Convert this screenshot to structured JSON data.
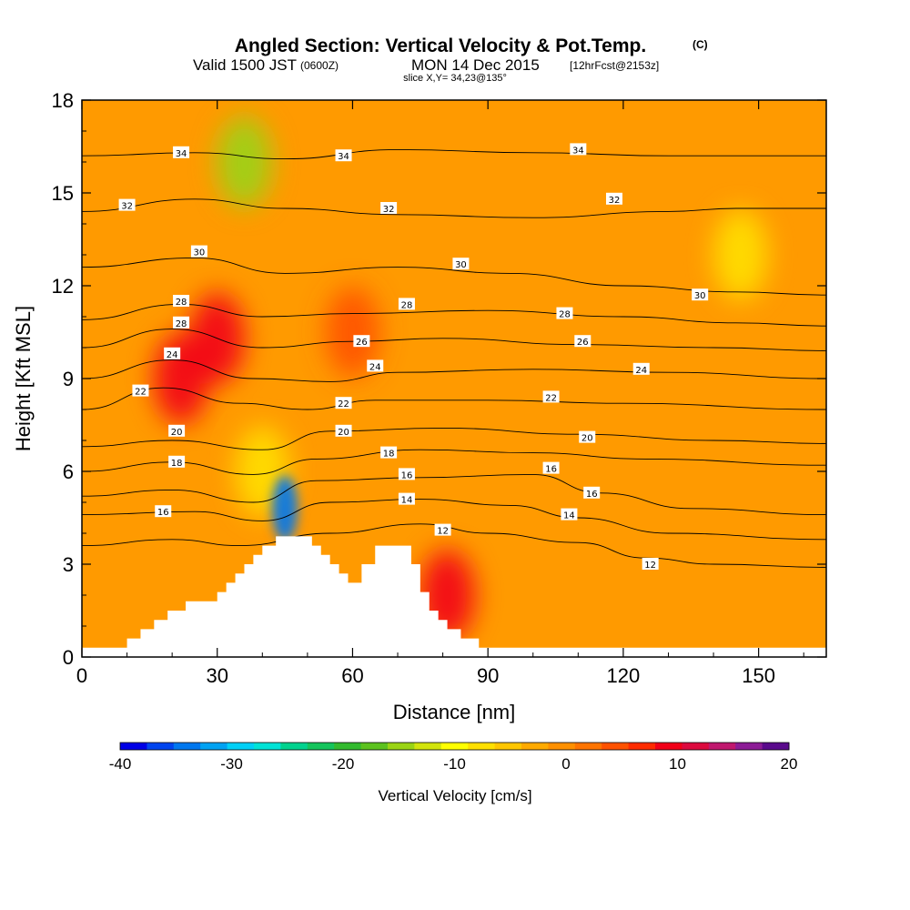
{
  "title": {
    "main": "Angled Section: Vertical Velocity & Pot.Temp.",
    "units_mark": "(C)",
    "valid_prefix": "Valid 1500 JST",
    "utc": "(0600Z)",
    "valid_date": "MON 14 Dec 2015",
    "forecast": "[12hrFcst@2153z]",
    "slice": "slice X,Y= 34,23@135°"
  },
  "chart_data": {
    "type": "contour",
    "xlabel": "Distance [nm]",
    "ylabel": "Height [Kft MSL]",
    "xlim": [
      0,
      165
    ],
    "ylim": [
      0,
      18
    ],
    "xticks": [
      "0",
      "30",
      "60",
      "90",
      "120",
      "150"
    ],
    "xtick_values": [
      0,
      30,
      60,
      90,
      120,
      150
    ],
    "yticks": [
      "0",
      "3",
      "6",
      "9",
      "12",
      "15",
      "18"
    ],
    "ytick_values": [
      0,
      3,
      6,
      9,
      12,
      15,
      18
    ],
    "colorbar": {
      "label": "Vertical Velocity [cm/s]",
      "range": [
        -40,
        20
      ],
      "ticks": [
        "-40",
        "-30",
        "-20",
        "-10",
        "0",
        "10",
        "20"
      ],
      "tick_values": [
        -40,
        -30,
        -20,
        -10,
        0,
        10,
        20
      ],
      "colors": [
        "#0000e6",
        "#0044ee",
        "#0077ee",
        "#00a2f2",
        "#00d0f6",
        "#00e3d6",
        "#00d28e",
        "#14c45c",
        "#32ba2e",
        "#5cc21e",
        "#9ad414",
        "#d2e40c",
        "#ffff00",
        "#ffe000",
        "#ffc600",
        "#ffaa00",
        "#ff9000",
        "#ff7400",
        "#ff5200",
        "#ff2c00",
        "#f20018",
        "#dc0a3e",
        "#c0186e",
        "#8c1c96",
        "#5a0a8c"
      ]
    },
    "velocity_features": [
      {
        "kind": "updraft",
        "x": 30,
        "y": 10.3,
        "value": 10
      },
      {
        "kind": "updraft",
        "x": 22,
        "y": 9.0,
        "value": 9
      },
      {
        "kind": "updraft",
        "x": 60,
        "y": 10.5,
        "value": 5
      },
      {
        "kind": "updraft",
        "x": 81,
        "y": 2.0,
        "value": 8
      },
      {
        "kind": "downdraft",
        "x": 45,
        "y": 4.8,
        "value": -35
      },
      {
        "kind": "downdraft",
        "x": 36,
        "y": 16.0,
        "value": -15
      },
      {
        "kind": "downdraft",
        "x": 40,
        "y": 6.0,
        "value": -8
      },
      {
        "kind": "downdraft",
        "x": 146,
        "y": 13.0,
        "value": -8
      }
    ],
    "terrain_profile": {
      "x": [
        0,
        8,
        10,
        13,
        16,
        19,
        23,
        30,
        32,
        34,
        36,
        38,
        40,
        43,
        49,
        51,
        53,
        55,
        57,
        59,
        62,
        65,
        71,
        73,
        75,
        77,
        79,
        81,
        84,
        88,
        165
      ],
      "y": [
        0.3,
        0.3,
        0.6,
        0.9,
        1.2,
        1.5,
        1.8,
        2.1,
        2.4,
        2.7,
        3.0,
        3.3,
        3.6,
        3.9,
        3.9,
        3.6,
        3.3,
        3.0,
        2.7,
        2.4,
        3.0,
        3.6,
        3.6,
        3.0,
        2.1,
        1.5,
        1.2,
        0.9,
        0.6,
        0.3,
        0.3
      ]
    },
    "theta_contours": [
      {
        "level": 12,
        "label": "12",
        "pts": [
          [
            0,
            3.6
          ],
          [
            20,
            3.8
          ],
          [
            35,
            3.6
          ],
          [
            55,
            4.0
          ],
          [
            75,
            4.3
          ],
          [
            90,
            4.0
          ],
          [
            110,
            3.7
          ],
          [
            125,
            3.2
          ],
          [
            140,
            3.0
          ],
          [
            165,
            2.9
          ]
        ],
        "labels": [
          [
            80,
            4.1
          ],
          [
            126,
            3.0
          ]
        ]
      },
      {
        "level": 14,
        "label": "14",
        "pts": [
          [
            0,
            4.6
          ],
          [
            25,
            4.7
          ],
          [
            40,
            4.4
          ],
          [
            55,
            5.0
          ],
          [
            75,
            5.1
          ],
          [
            95,
            4.9
          ],
          [
            110,
            4.5
          ],
          [
            130,
            4.0
          ],
          [
            165,
            3.8
          ]
        ],
        "labels": [
          [
            72,
            5.1
          ],
          [
            108,
            4.6
          ]
        ]
      },
      {
        "level": 16,
        "label": "16",
        "pts": [
          [
            0,
            5.2
          ],
          [
            20,
            5.4
          ],
          [
            38,
            5.0
          ],
          [
            52,
            5.7
          ],
          [
            75,
            5.8
          ],
          [
            100,
            5.9
          ],
          [
            115,
            5.3
          ],
          [
            135,
            4.8
          ],
          [
            165,
            4.6
          ]
        ],
        "labels": [
          [
            18,
            4.7
          ],
          [
            72,
            5.9
          ],
          [
            104,
            6.1
          ],
          [
            113,
            5.3
          ]
        ]
      },
      {
        "level": 18,
        "label": "18",
        "pts": [
          [
            0,
            6.0
          ],
          [
            20,
            6.3
          ],
          [
            38,
            5.9
          ],
          [
            52,
            6.4
          ],
          [
            75,
            6.7
          ],
          [
            100,
            6.6
          ],
          [
            125,
            6.4
          ],
          [
            165,
            6.2
          ]
        ],
        "labels": [
          [
            21,
            6.3
          ],
          [
            68,
            6.6
          ]
        ]
      },
      {
        "level": 20,
        "label": "20",
        "pts": [
          [
            0,
            6.8
          ],
          [
            20,
            7.0
          ],
          [
            40,
            6.7
          ],
          [
            55,
            7.3
          ],
          [
            80,
            7.4
          ],
          [
            110,
            7.2
          ],
          [
            140,
            7.0
          ],
          [
            165,
            6.9
          ]
        ],
        "labels": [
          [
            21,
            7.3
          ],
          [
            58,
            7.3
          ],
          [
            112,
            7.1
          ]
        ]
      },
      {
        "level": 22,
        "label": "22",
        "pts": [
          [
            0,
            8.0
          ],
          [
            18,
            8.7
          ],
          [
            35,
            8.2
          ],
          [
            50,
            8.0
          ],
          [
            65,
            8.3
          ],
          [
            90,
            8.3
          ],
          [
            120,
            8.2
          ],
          [
            165,
            8.0
          ]
        ],
        "labels": [
          [
            13,
            8.6
          ],
          [
            58,
            8.2
          ],
          [
            104,
            8.4
          ]
        ]
      },
      {
        "level": 24,
        "label": "24",
        "pts": [
          [
            0,
            9.0
          ],
          [
            20,
            9.6
          ],
          [
            38,
            9.0
          ],
          [
            55,
            8.9
          ],
          [
            70,
            9.2
          ],
          [
            100,
            9.3
          ],
          [
            130,
            9.2
          ],
          [
            165,
            9.0
          ]
        ],
        "labels": [
          [
            20,
            9.8
          ],
          [
            65,
            9.4
          ],
          [
            124,
            9.3
          ]
        ]
      },
      {
        "level": 26,
        "label": "26",
        "pts": [
          [
            0,
            10.0
          ],
          [
            20,
            10.6
          ],
          [
            40,
            10.0
          ],
          [
            60,
            10.2
          ],
          [
            80,
            10.3
          ],
          [
            110,
            10.1
          ],
          [
            140,
            10.0
          ],
          [
            165,
            9.9
          ]
        ],
        "labels": [
          [
            62,
            10.2
          ],
          [
            111,
            10.2
          ]
        ]
      },
      {
        "level": 28,
        "label": "28",
        "pts": [
          [
            0,
            10.9
          ],
          [
            22,
            11.4
          ],
          [
            40,
            11.0
          ],
          [
            60,
            11.1
          ],
          [
            90,
            11.2
          ],
          [
            120,
            11.0
          ],
          [
            145,
            10.8
          ],
          [
            165,
            10.7
          ]
        ],
        "labels": [
          [
            22,
            10.8
          ],
          [
            22,
            11.5
          ],
          [
            72,
            11.4
          ],
          [
            107,
            11.1
          ]
        ]
      },
      {
        "level": 30,
        "label": "30",
        "pts": [
          [
            0,
            12.6
          ],
          [
            25,
            12.9
          ],
          [
            45,
            12.4
          ],
          [
            70,
            12.6
          ],
          [
            95,
            12.4
          ],
          [
            120,
            12.0
          ],
          [
            145,
            11.8
          ],
          [
            165,
            11.7
          ]
        ],
        "labels": [
          [
            26,
            13.1
          ],
          [
            84,
            12.7
          ],
          [
            137,
            11.7
          ]
        ]
      },
      {
        "level": 32,
        "label": "32",
        "pts": [
          [
            0,
            14.4
          ],
          [
            25,
            14.8
          ],
          [
            45,
            14.5
          ],
          [
            70,
            14.3
          ],
          [
            100,
            14.2
          ],
          [
            130,
            14.4
          ],
          [
            145,
            14.5
          ],
          [
            165,
            14.5
          ]
        ],
        "labels": [
          [
            10,
            14.6
          ],
          [
            68,
            14.5
          ],
          [
            118,
            14.8
          ]
        ]
      },
      {
        "level": 34,
        "label": "34",
        "pts": [
          [
            0,
            16.2
          ],
          [
            25,
            16.3
          ],
          [
            45,
            16.1
          ],
          [
            70,
            16.4
          ],
          [
            100,
            16.3
          ],
          [
            130,
            16.2
          ],
          [
            165,
            16.2
          ]
        ],
        "labels": [
          [
            22,
            16.3
          ],
          [
            58,
            16.2
          ],
          [
            110,
            16.4
          ]
        ]
      }
    ]
  }
}
